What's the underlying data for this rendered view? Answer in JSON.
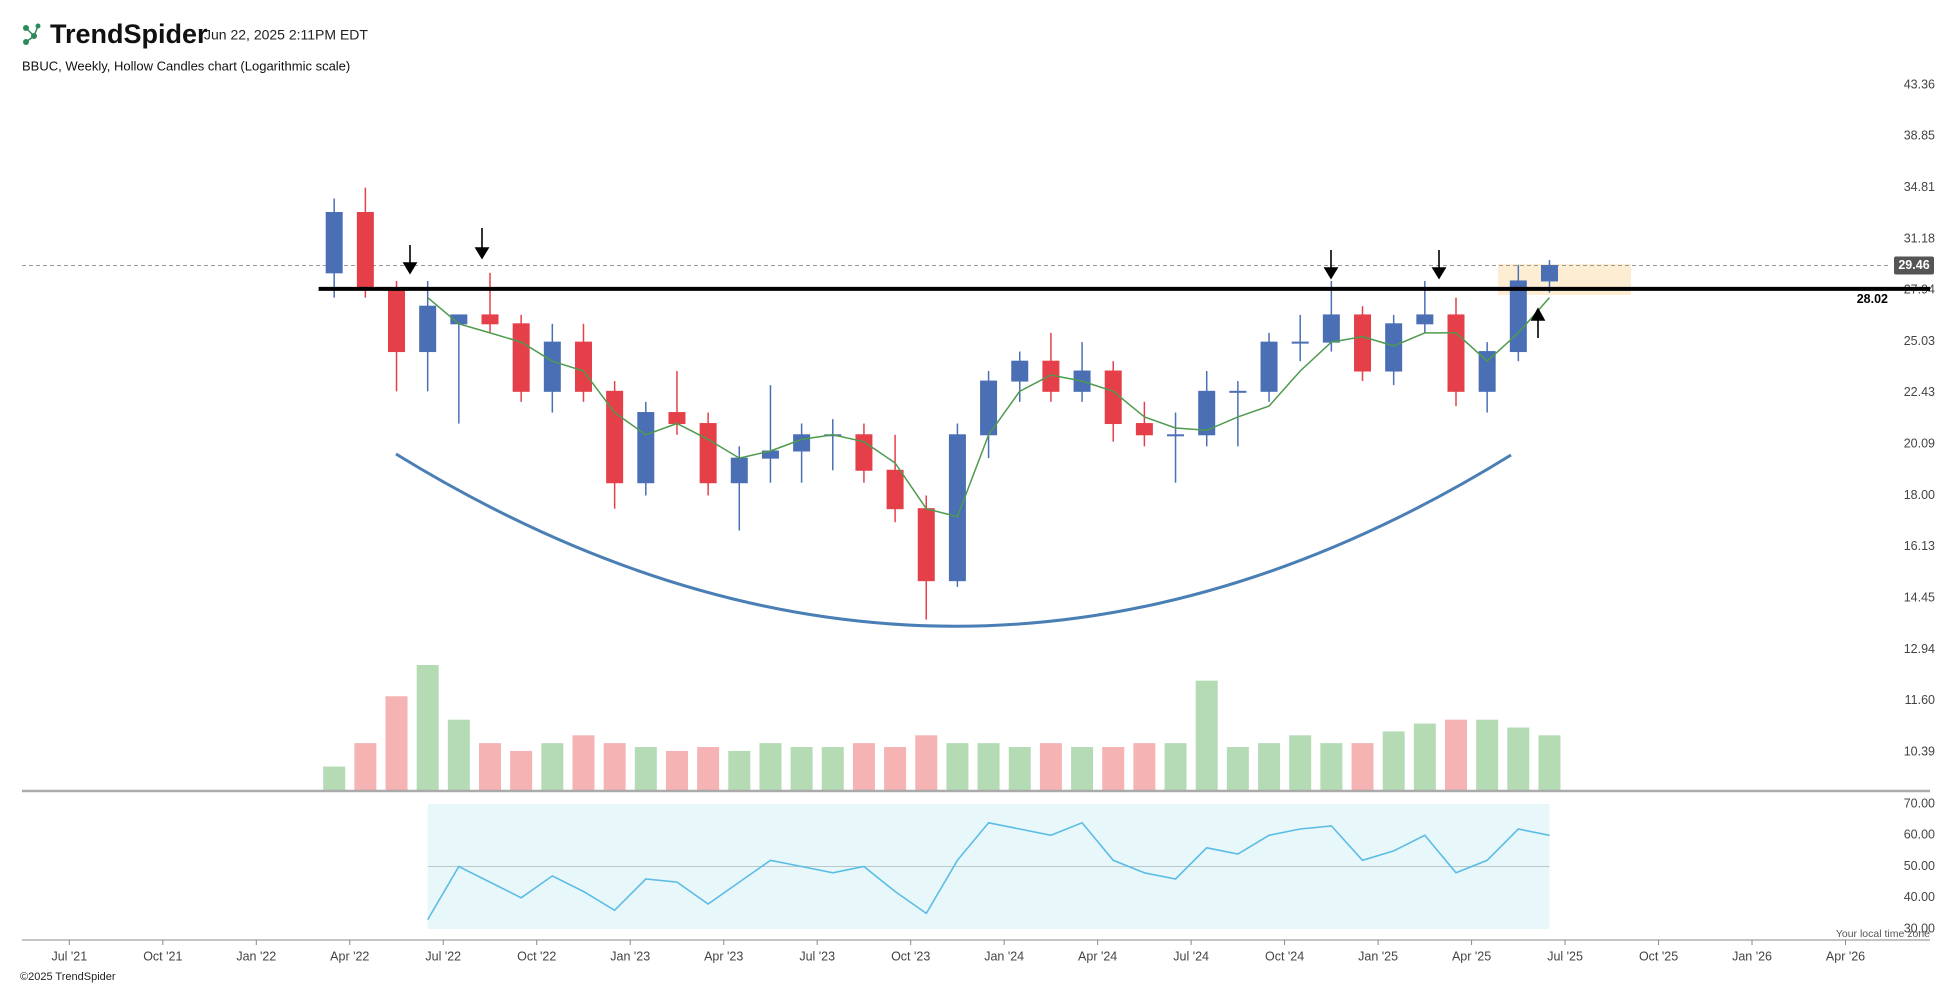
{
  "header": {
    "logo": "TrendSpider",
    "timestamp": "Jun 22, 2025 2:11PM EDT"
  },
  "footer": {
    "copyright": "©2025 TrendSpider",
    "timezone_note": "Your local time zone"
  },
  "chart_data": {
    "type": "candlestick",
    "title": "BBUC, Weekly, Hollow Candles chart (Logarithmic scale)",
    "log_scale": true,
    "grid": false,
    "x": [
      "2022-03",
      "2022-04",
      "2022-05",
      "2022-06",
      "2022-07",
      "2022-08",
      "2022-09",
      "2022-10",
      "2022-11",
      "2022-12",
      "2023-01",
      "2023-02",
      "2023-03",
      "2023-04",
      "2023-05",
      "2023-06",
      "2023-07",
      "2023-08",
      "2023-09",
      "2023-10",
      "2023-11",
      "2023-12",
      "2024-01",
      "2024-02",
      "2024-03",
      "2024-04",
      "2024-05",
      "2024-06",
      "2024-07",
      "2024-08",
      "2024-09",
      "2024-10",
      "2024-11",
      "2024-12",
      "2025-01",
      "2025-02",
      "2025-03",
      "2025-04",
      "2025-05",
      "2025-06"
    ],
    "open": [
      29,
      33,
      28,
      24.5,
      26,
      26.5,
      26,
      22.5,
      25,
      22.5,
      18.5,
      21.5,
      21,
      18.5,
      19.5,
      19.8,
      20.5,
      20.5,
      19,
      17.5,
      15,
      20.5,
      23,
      24,
      22.5,
      23.5,
      21,
      20.5,
      20.5,
      22.5,
      22.5,
      25,
      25,
      26.5,
      23.5,
      26,
      26.5,
      22.5,
      24.5,
      28.5
    ],
    "high": [
      34,
      34.8,
      28.5,
      28.5,
      26.5,
      29,
      26.5,
      26,
      26,
      23,
      22,
      23.5,
      21.5,
      20,
      22.8,
      21,
      21.2,
      21,
      20.5,
      18,
      21,
      23.5,
      24.5,
      25.5,
      25,
      24,
      22,
      21.5,
      23.5,
      23,
      25.5,
      26.5,
      28.5,
      27,
      26.5,
      28.5,
      27.5,
      25,
      29.5,
      29.8
    ],
    "low": [
      27.5,
      27.5,
      22.5,
      22.5,
      21,
      25.5,
      22,
      21.5,
      22,
      17.5,
      18,
      20.5,
      18,
      16.7,
      18.5,
      18.5,
      19,
      18.5,
      17,
      13.8,
      14.8,
      19.5,
      22,
      22,
      22,
      20.2,
      20,
      18.5,
      20,
      20,
      22,
      24,
      24.5,
      23,
      22.8,
      25.5,
      21.8,
      21.5,
      24,
      27.8
    ],
    "close": [
      33,
      28,
      24.5,
      27,
      26.5,
      26,
      22.5,
      25,
      22.5,
      18.5,
      21.5,
      21,
      18.5,
      19.5,
      19.8,
      20.5,
      20.5,
      19,
      17.5,
      15,
      20.5,
      23,
      24,
      22.5,
      23.5,
      21,
      20.5,
      20.5,
      22.5,
      22.5,
      25,
      25,
      26.5,
      23.5,
      26,
      26.5,
      22.5,
      24.5,
      28.5,
      29.46
    ],
    "volume": [
      30000,
      60000,
      120000,
      160000,
      90000,
      60000,
      50000,
      60000,
      70000,
      60000,
      55000,
      50000,
      55000,
      50000,
      60000,
      55000,
      55000,
      60000,
      55000,
      70000,
      60000,
      60000,
      55000,
      60000,
      55000,
      55000,
      60000,
      60000,
      140000,
      55000,
      60000,
      70000,
      60000,
      60000,
      75000,
      85000,
      90000,
      90000,
      80000,
      70000
    ],
    "ma": [
      null,
      null,
      null,
      27.5,
      26,
      25.5,
      25,
      24,
      23.5,
      21.5,
      20.5,
      21,
      20.3,
      19.5,
      19.8,
      20.3,
      20.5,
      20.2,
      19.3,
      17.5,
      17.2,
      20.5,
      22.5,
      23.3,
      23,
      22.5,
      21.3,
      20.8,
      20.7,
      21.3,
      21.8,
      23.5,
      25,
      25.3,
      24.8,
      25.5,
      25.5,
      24,
      25.5,
      27.5
    ],
    "up_color": "#4a6fb5",
    "down_color": "#e5404a",
    "ma_color": "#4e9a4e",
    "volume_up_color": "#b5dbb5",
    "volume_down_color": "#f5b3b3",
    "level": 28.02,
    "last_price": 29.46,
    "ylim": [
      9.58,
      44.3
    ],
    "yticks": [
      43.36,
      38.85,
      34.81,
      31.18,
      27.94,
      25.03,
      22.43,
      20.09,
      {
        "value": 18,
        "label": "18.00"
      },
      16.13,
      14.45,
      12.94,
      {
        "value": 11.6,
        "label": "11.60"
      },
      10.39
    ],
    "xlim": [
      "2021-05",
      "2026-07"
    ],
    "xticks": [
      {
        "value": "2021-07",
        "label": "Jul '21"
      },
      {
        "value": "2021-10",
        "label": "Oct '21"
      },
      {
        "value": "2022-01",
        "label": "Jan '22"
      },
      {
        "value": "2022-04",
        "label": "Apr '22"
      },
      {
        "value": "2022-07",
        "label": "Jul '22"
      },
      {
        "value": "2022-10",
        "label": "Oct '22"
      },
      {
        "value": "2023-01",
        "label": "Jan '23"
      },
      {
        "value": "2023-04",
        "label": "Apr '23"
      },
      {
        "value": "2023-07",
        "label": "Jul '23"
      },
      {
        "value": "2023-10",
        "label": "Oct '23"
      },
      {
        "value": "2024-01",
        "label": "Jan '24"
      },
      {
        "value": "2024-04",
        "label": "Apr '24"
      },
      {
        "value": "2024-07",
        "label": "Jul '24"
      },
      {
        "value": "2024-10",
        "label": "Oct '24"
      },
      {
        "value": "2025-01",
        "label": "Jan '25"
      },
      {
        "value": "2025-04",
        "label": "Apr '25"
      },
      {
        "value": "2025-07",
        "label": "Jul '25"
      },
      {
        "value": "2025-10",
        "label": "Oct '25"
      },
      {
        "value": "2026-01",
        "label": "Jan '26"
      },
      {
        "value": "2026-04",
        "label": "Apr '26"
      }
    ],
    "rsi": {
      "color": "#5bbde6",
      "values": [
        null,
        null,
        null,
        33,
        50,
        45,
        40,
        47,
        42,
        36,
        46,
        45,
        38,
        45,
        52,
        50,
        48,
        50,
        42,
        35,
        52,
        64,
        62,
        60,
        64,
        52,
        48,
        46,
        56,
        54,
        60,
        62,
        63,
        52,
        55,
        60,
        48,
        52,
        62,
        60
      ],
      "ylim": [
        30,
        70
      ],
      "yticks": [
        {
          "value": 70,
          "label": "70.00"
        },
        {
          "value": 60,
          "label": "60.00"
        },
        {
          "value": 50,
          "label": "50.00"
        },
        {
          "value": 40,
          "label": "40.00"
        },
        {
          "value": 30,
          "label": "30.00"
        }
      ]
    }
  }
}
